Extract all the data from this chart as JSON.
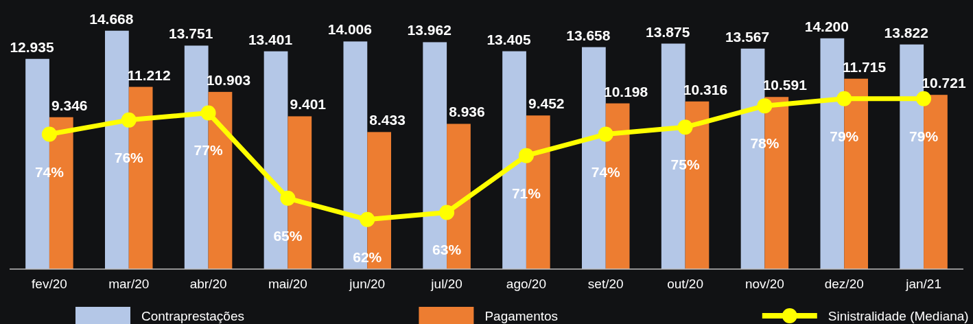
{
  "chart_data": {
    "type": "bar",
    "categories": [
      "fev/20",
      "mar/20",
      "abr/20",
      "mai/20",
      "jun/20",
      "jul/20",
      "ago/20",
      "set/20",
      "out/20",
      "nov/20",
      "dez/20",
      "jan/21"
    ],
    "series": [
      {
        "name": "Contraprestações",
        "color": "#b4c7e7",
        "values": [
          12935,
          14668,
          13751,
          13401,
          14006,
          13962,
          13405,
          13658,
          13875,
          13567,
          14200,
          13822
        ],
        "value_labels": [
          "12.935",
          "14.668",
          "13.751",
          "13.401",
          "14.006",
          "13.962",
          "13.405",
          "13.658",
          "13.875",
          "13.567",
          "14.200",
          "13.822"
        ]
      },
      {
        "name": "Pagamentos",
        "color": "#ed7d31",
        "values": [
          9346,
          11212,
          10903,
          9401,
          8433,
          8936,
          9452,
          10198,
          10316,
          10591,
          11715,
          10721
        ],
        "value_labels": [
          "9.346",
          "11.212",
          "10.903",
          "9.401",
          "8.433",
          "8.936",
          "9.452",
          "10.198",
          "10.316",
          "10.591",
          "11.715",
          "10.721"
        ]
      },
      {
        "name": "Sinistralidade (Mediana)",
        "type": "line",
        "axis": "y2",
        "color": "#ffff00",
        "marker": "circle",
        "values": [
          74,
          76,
          77,
          65,
          62,
          63,
          71,
          74,
          75,
          78,
          79,
          79
        ],
        "value_labels": [
          "74%",
          "76%",
          "77%",
          "65%",
          "62%",
          "63%",
          "71%",
          "74%",
          "75%",
          "78%",
          "79%",
          "79%"
        ]
      }
    ],
    "tick_labels": "x",
    "legend": "bottom"
  }
}
